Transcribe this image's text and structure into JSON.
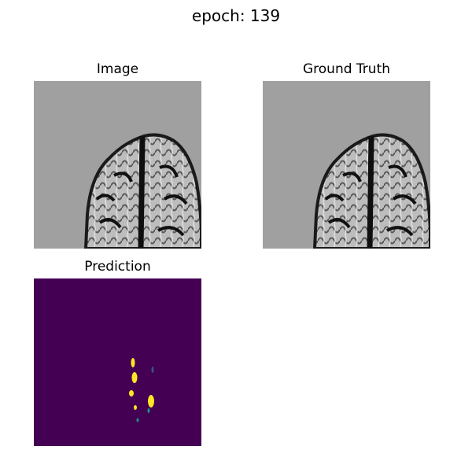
{
  "figure": {
    "suptitle": "epoch: 139",
    "panels": {
      "image": {
        "title": "Image"
      },
      "ground_truth": {
        "title": "Ground Truth"
      },
      "prediction": {
        "title": "Prediction"
      }
    }
  },
  "colors": {
    "background_gray": "#a0a0a0",
    "colormap_low": "#440154",
    "colormap_high": "#fde725",
    "colormap_mid": "#21918c"
  }
}
